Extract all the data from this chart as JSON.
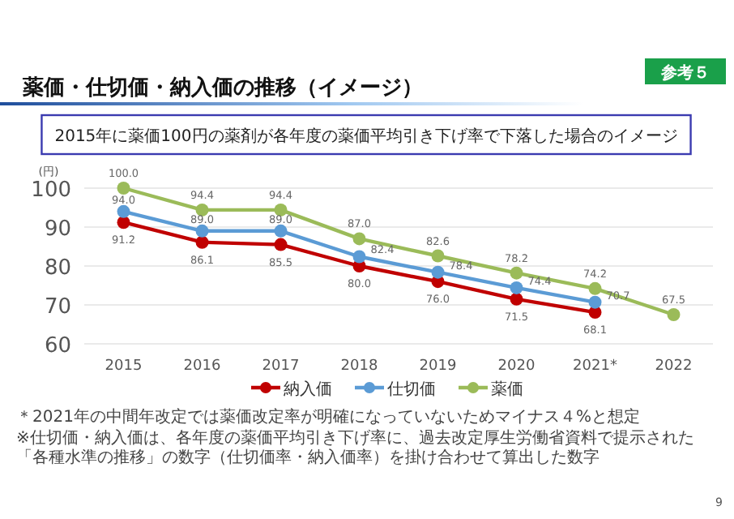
{
  "chart_data": {
    "type": "line",
    "title": "薬価・仕切価・納入価の推移（イメージ）",
    "subtitle": "2015年に薬価100円の薬剤が各年度の薬価平均引き下げ率で下落した場合のイメージ",
    "ylabel": "(円)",
    "categories": [
      "2015",
      "2016",
      "2017",
      "2018",
      "2019",
      "2020",
      "2021*",
      "2022"
    ],
    "series": [
      {
        "name": "納入価",
        "color": "#c00000",
        "values": [
          91.2,
          86.1,
          85.5,
          80.0,
          76.0,
          71.5,
          68.1,
          null
        ],
        "value_labels": [
          "91.2",
          "86.1",
          "85.5",
          "80.0",
          "76.0",
          "71.5",
          "68.1",
          null
        ]
      },
      {
        "name": "仕切価",
        "color": "#5b9bd5",
        "values": [
          94.0,
          89.0,
          89.0,
          82.4,
          78.4,
          74.4,
          70.7,
          null
        ],
        "value_labels": [
          "94.0",
          "89.0",
          "89.0",
          "82.4",
          "78.4",
          "74.4",
          "70.7",
          null
        ]
      },
      {
        "name": "薬価",
        "color": "#9bbb59",
        "values": [
          100.0,
          94.4,
          94.4,
          87.0,
          82.6,
          78.2,
          74.2,
          67.5
        ],
        "value_labels": [
          "100.0",
          "94.4",
          "94.4",
          "87.0",
          "82.6",
          "78.2",
          "74.2",
          "67.5"
        ]
      }
    ],
    "ylim": [
      60,
      100
    ],
    "yticks": [
      60,
      70,
      80,
      90,
      100
    ],
    "grid": "y",
    "legend": "bottom",
    "marker": "circle",
    "line_style": "solid",
    "annotations": [
      "参考５",
      "＊2021年の中間年改定では薬価改定率が明確になっていないためマイナス４%と想定",
      "※仕切価・納入価は、各年度の薬価平均引き下げ率に、過去改定厚生労働省資料で提示された「各種水準の推移」の数字（仕切価率・納入価率）を掛け合わせて算出した数字",
      "9"
    ]
  }
}
